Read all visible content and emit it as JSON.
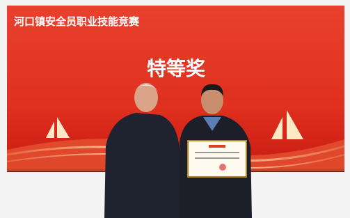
{
  "screen": {
    "title": "河口镇安全员职业技能竞赛",
    "award": "特等奖"
  }
}
